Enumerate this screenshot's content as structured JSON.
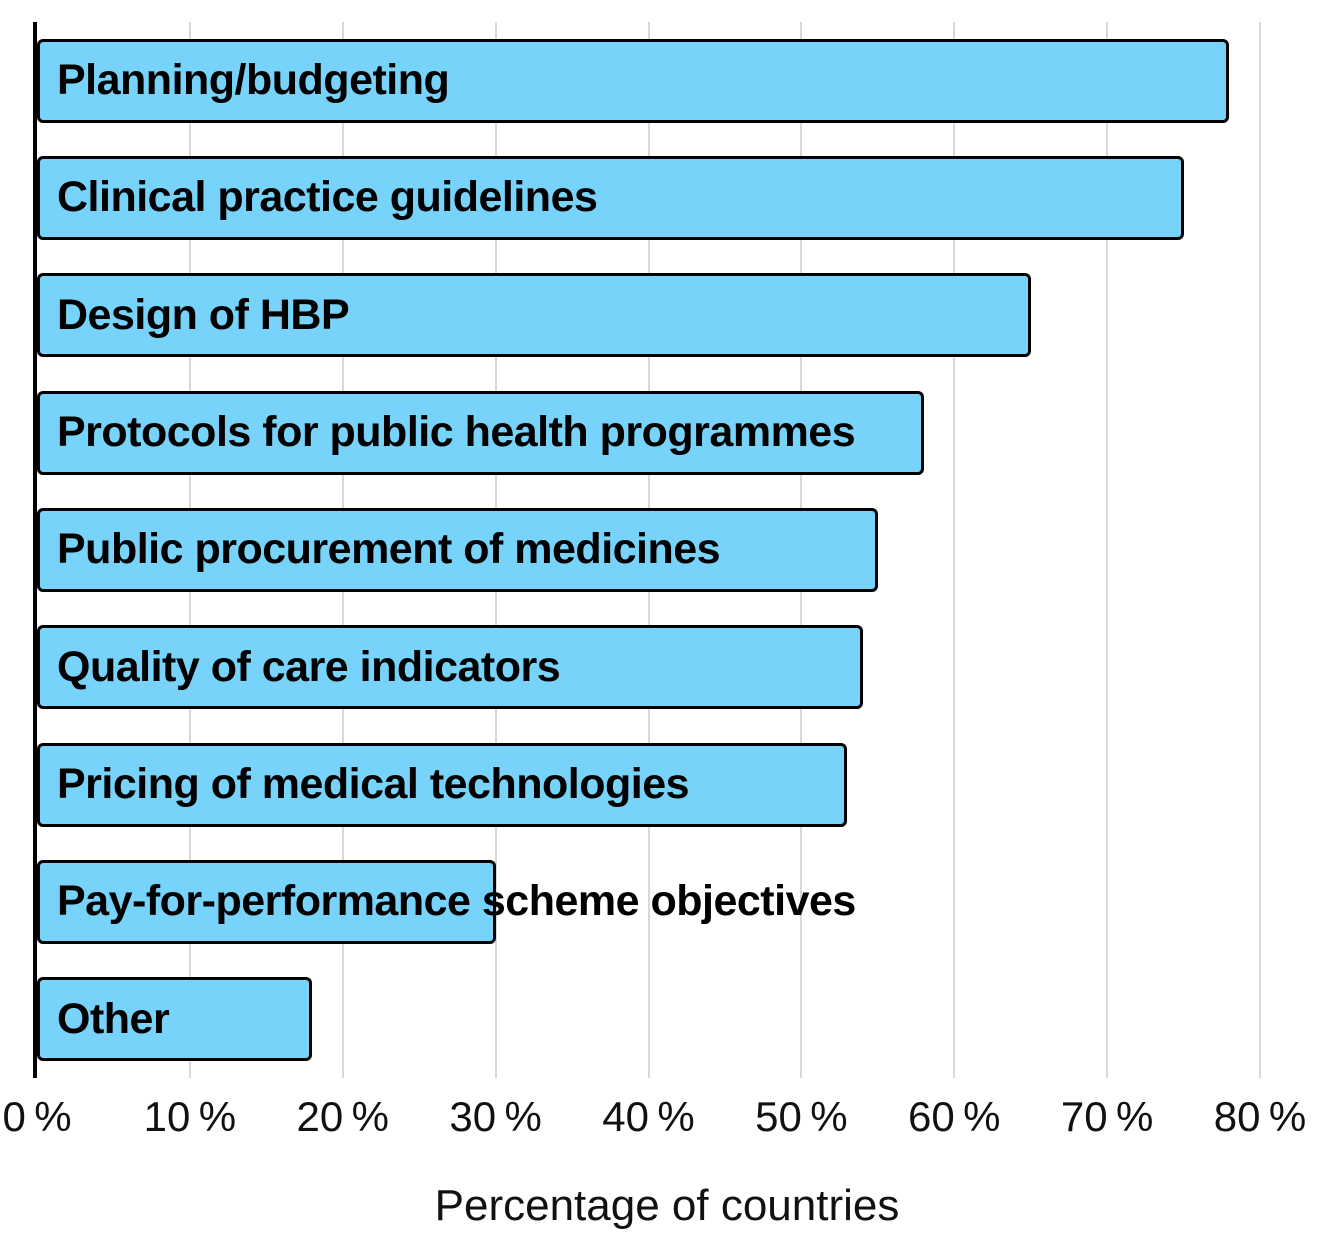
{
  "chart_data": {
    "type": "bar",
    "orientation": "horizontal",
    "title": "",
    "xlabel": "Percentage of countries",
    "ylabel": "",
    "xlim": [
      0,
      80
    ],
    "grid": "vertical",
    "legend": "none",
    "categories": [
      "Planning/budgeting",
      "Clinical practice guidelines",
      "Design of HBP",
      "Protocols for public health programmes",
      "Public procurement of medicines",
      "Quality of care indicators",
      "Pricing of medical technologies",
      "Pay-for-performance scheme objectives",
      "Other"
    ],
    "values": [
      78,
      75,
      65,
      58,
      55,
      54,
      53,
      30,
      18
    ],
    "unit": "%",
    "xticks": [
      0,
      10,
      20,
      30,
      40,
      50,
      60,
      70,
      80
    ],
    "xtick_labels": [
      "0 %",
      "10 %",
      "20 %",
      "30 %",
      "40 %",
      "50 %",
      "60 %",
      "70 %",
      "80 %"
    ],
    "colors": {
      "bar_fill": "#77D3FA",
      "bar_border": "#000000",
      "gridline": "#D8D8D8",
      "axis_line": "#000000",
      "label_text": "#000000",
      "tick_text": "#111111"
    },
    "label_position": "inside-left"
  }
}
